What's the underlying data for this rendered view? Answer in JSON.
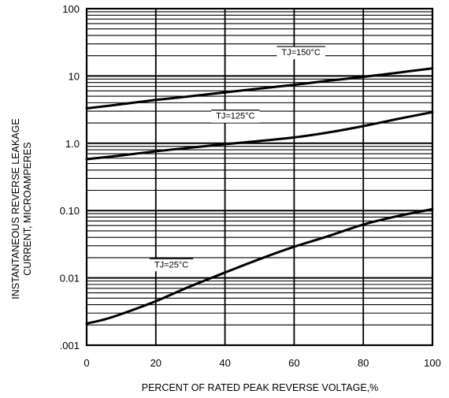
{
  "chart_data": {
    "type": "line",
    "xlabel": "PERCENT OF RATED PEAK REVERSE VOLTAGE,%",
    "ylabel_lines": [
      "INSTANTANEOUS REVERSE LEAKAGE",
      "CURRENT, MICROAMPERES"
    ],
    "xlim": [
      0,
      100
    ],
    "ylim": [
      0.001,
      100
    ],
    "y_scale": "log",
    "grid": true,
    "x_ticks": [
      {
        "value": 0,
        "label": "0"
      },
      {
        "value": 20,
        "label": "20"
      },
      {
        "value": 40,
        "label": "40"
      },
      {
        "value": 60,
        "label": "60"
      },
      {
        "value": 80,
        "label": "80"
      },
      {
        "value": 100,
        "label": "100"
      }
    ],
    "y_ticks": [
      {
        "value": 100,
        "label": "100"
      },
      {
        "value": 10,
        "label": "10"
      },
      {
        "value": 1,
        "label": "1.0"
      },
      {
        "value": 0.1,
        "label": "0.10"
      },
      {
        "value": 0.01,
        "label": "0.01"
      },
      {
        "value": 0.001,
        "label": ".001"
      }
    ],
    "series": [
      {
        "name": "TJ=150°C",
        "label_at": {
          "x": 62,
          "y": 22
        },
        "x": [
          0,
          10,
          20,
          30,
          40,
          50,
          60,
          70,
          80,
          90,
          100
        ],
        "y": [
          3.3,
          3.8,
          4.4,
          5.0,
          5.7,
          6.5,
          7.4,
          8.5,
          9.7,
          11.2,
          13
        ]
      },
      {
        "name": "TJ=125°C",
        "label_at": {
          "x": 43,
          "y": 2.5
        },
        "x": [
          0,
          10,
          20,
          30,
          40,
          50,
          60,
          70,
          80,
          90,
          100
        ],
        "y": [
          0.58,
          0.66,
          0.76,
          0.86,
          0.97,
          1.08,
          1.22,
          1.45,
          1.8,
          2.3,
          2.9
        ]
      },
      {
        "name": "TJ=25°C",
        "label_at": {
          "x": 24.5,
          "y": 0.0155
        },
        "x": [
          0,
          5,
          10,
          20,
          30,
          40,
          50,
          60,
          70,
          80,
          90,
          100
        ],
        "y": [
          0.0021,
          0.0024,
          0.0029,
          0.0045,
          0.0075,
          0.012,
          0.019,
          0.029,
          0.042,
          0.062,
          0.083,
          0.105
        ]
      }
    ]
  }
}
